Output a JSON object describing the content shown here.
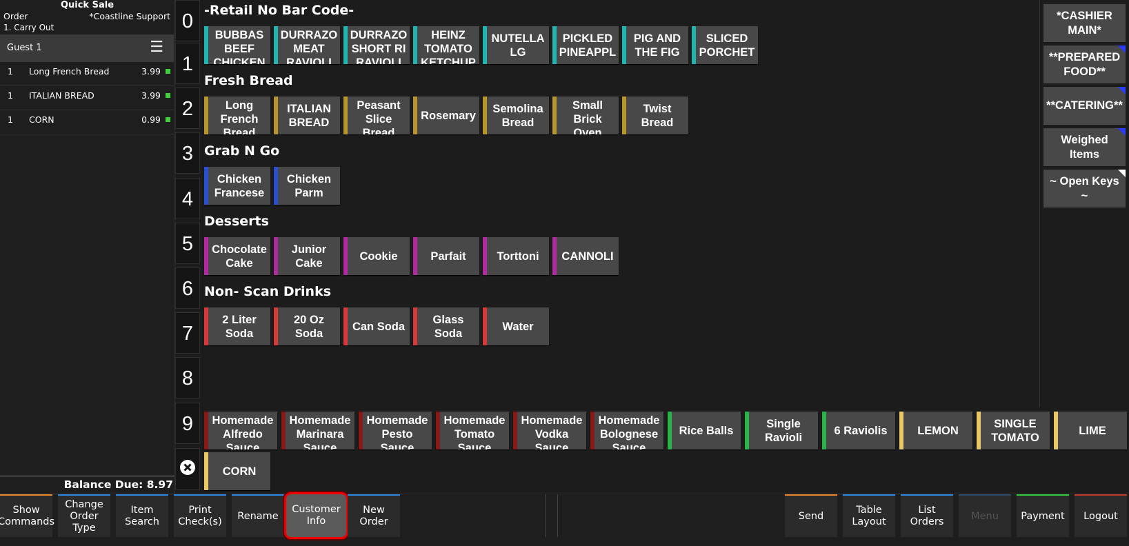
{
  "header": {
    "title": "Quick Sale",
    "order_label": "Order",
    "support": "*Coastline Support",
    "order_type": "1. Carry Out"
  },
  "guest": {
    "label": "Guest 1",
    "menu_icon": "hamburger-icon"
  },
  "order_items": [
    {
      "qty": "1",
      "name": "Long French Bread",
      "price": "3.99"
    },
    {
      "qty": "1",
      "name": "ITALIAN BREAD",
      "price": "3.99"
    },
    {
      "qty": "1",
      "name": "CORN",
      "price": "0.99"
    }
  ],
  "balance": "Balance Due: 8.97",
  "numbers": [
    "0",
    "1",
    "2",
    "3",
    "4",
    "5",
    "6",
    "7",
    "8",
    "9"
  ],
  "categories": [
    {
      "title": "-Retail No Bar Code-",
      "color": "#1fb5b0",
      "items": [
        "BUBBAS\nBEEF\nCHICKEN",
        "DURRAZO\nMEAT\nRAVIOLI",
        "DURRAZO\nSHORT RI\nRAVIOLI",
        "HEINZ\nTOMATO\nKETCHUP",
        "NUTELLA\nLG",
        "PICKLED\nPINEAPPL",
        "PIG AND\nTHE FIG",
        "SLICED\nPORCHET"
      ]
    },
    {
      "title": "Fresh Bread",
      "color": "#b8962a",
      "items": [
        "Long\nFrench\nBread",
        "ITALIAN\nBREAD",
        "Peasant\nSlice\nBread",
        "Rosemary",
        "Semolina\nBread",
        "Small\nBrick\nOven",
        "Twist\nBread"
      ]
    },
    {
      "title": "Grab N Go",
      "color": "#2a4fd1",
      "items": [
        "Chicken\nFrancese",
        "Chicken\nParm"
      ]
    },
    {
      "title": "Desserts",
      "color": "#b02aa0",
      "items": [
        "Chocolate\nCake",
        "Junior\nCake",
        "Cookie",
        "Parfait",
        "Torttoni",
        "CANNOLI"
      ]
    },
    {
      "title": "Non- Scan Drinks",
      "color": "#d63a3a",
      "items": [
        "2 Liter\nSoda",
        "20 Oz\nSoda",
        "Can Soda",
        "Glass\nSoda",
        "Water"
      ]
    }
  ],
  "quick_items": [
    {
      "label": "Homemade\nAlfredo\nSauce",
      "color": "#8a1a1a"
    },
    {
      "label": "Homemade\nMarinara\nSauce",
      "color": "#8a1a1a"
    },
    {
      "label": "Homemade\nPesto\nSauce",
      "color": "#8a1a1a"
    },
    {
      "label": "Homemade\nTomato\nSauce",
      "color": "#8a1a1a"
    },
    {
      "label": "Homemade\nVodka\nSauce",
      "color": "#8a1a1a"
    },
    {
      "label": "Homemade\nBolognese\nSauce",
      "color": "#8a1a1a"
    },
    {
      "label": "Rice Balls",
      "color": "#2ab34a"
    },
    {
      "label": "Single\nRavioli",
      "color": "#2ab34a"
    },
    {
      "label": "6 Raviolis",
      "color": "#2ab34a"
    },
    {
      "label": "LEMON",
      "color": "#e8c866"
    },
    {
      "label": "SINGLE\nTOMATO",
      "color": "#e8c866"
    },
    {
      "label": "LIME",
      "color": "#e8c866"
    },
    {
      "label": "CORN",
      "color": "#e8c866"
    }
  ],
  "right_menu": [
    {
      "label": "*CASHIER\nMAIN*",
      "corner": ""
    },
    {
      "label": "**PREPARED\nFOOD**",
      "corner": "blue"
    },
    {
      "label": "**CATERING**",
      "corner": "blue"
    },
    {
      "label": "Weighed\nItems",
      "corner": "blue"
    },
    {
      "label": "~ Open Keys\n~",
      "corner": "white"
    }
  ],
  "bottom_left": [
    {
      "label": "Show\nCommands",
      "accent": "orange"
    },
    {
      "label": "Change\nOrder\nType",
      "accent": "blue"
    },
    {
      "label": "Item\nSearch",
      "accent": "blue"
    },
    {
      "label": "Print\nCheck(s)",
      "accent": "blue"
    },
    {
      "label": "Rename",
      "accent": "blue"
    },
    {
      "label": "Customer\nInfo",
      "accent": "blue",
      "selected": true
    },
    {
      "label": "New\nOrder",
      "accent": "blue"
    }
  ],
  "bottom_right": [
    {
      "label": "Send",
      "accent": "orange"
    },
    {
      "label": "Table\nLayout",
      "accent": "blue"
    },
    {
      "label": "List\nOrders",
      "accent": "blue"
    },
    {
      "label": "Menu",
      "accent": "dim"
    },
    {
      "label": "Payment",
      "accent": "green"
    },
    {
      "label": "Logout",
      "accent": "red"
    }
  ]
}
